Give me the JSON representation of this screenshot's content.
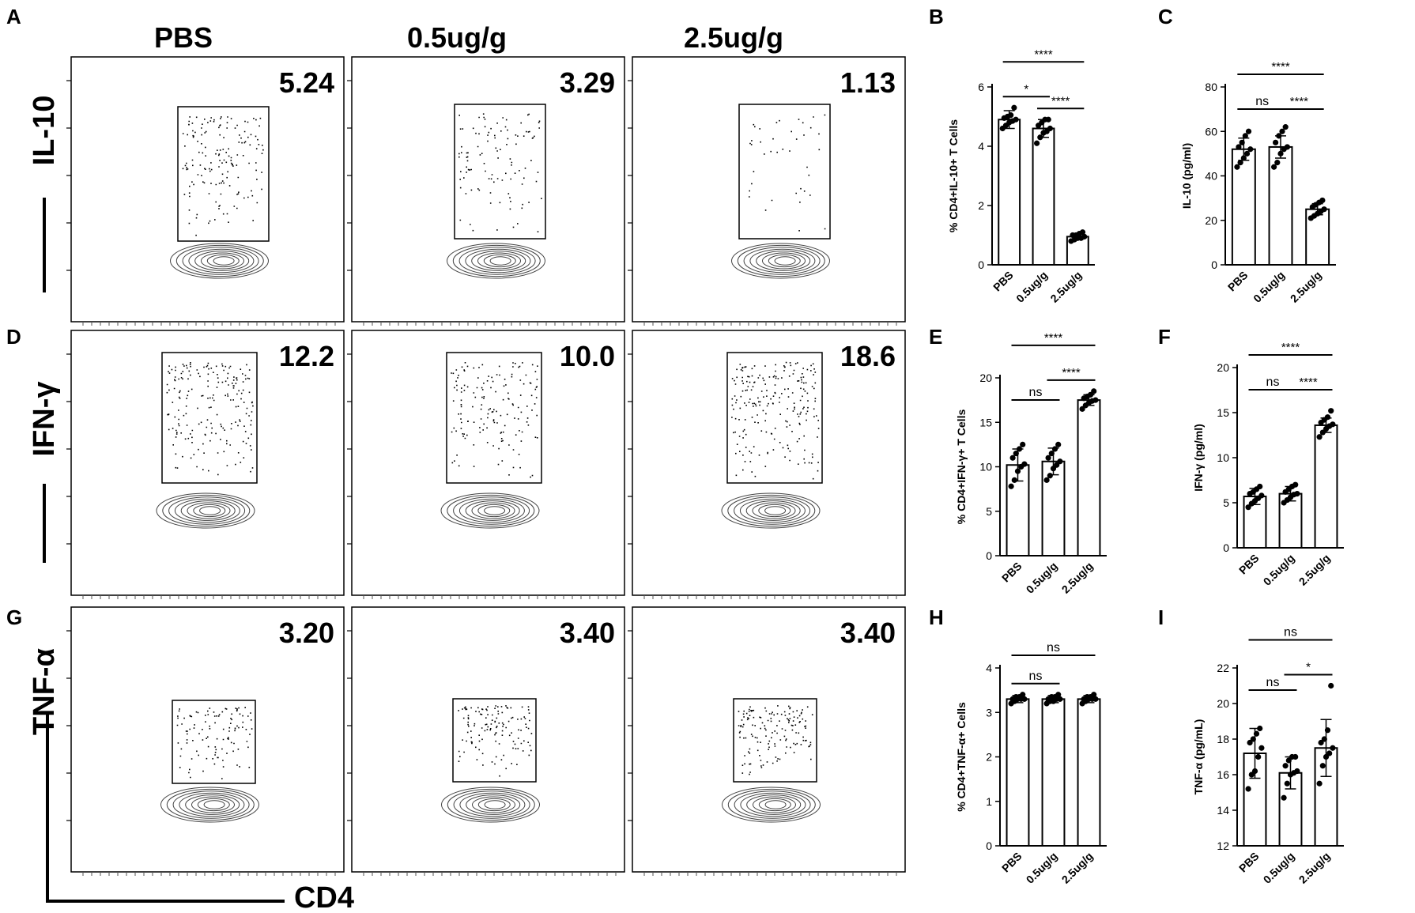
{
  "panel_letters": [
    "A",
    "B",
    "C",
    "D",
    "E",
    "F",
    "G",
    "H",
    "I"
  ],
  "flow": {
    "column_headers": [
      "PBS",
      "0.5ug/g",
      "2.5ug/g"
    ],
    "row_labels": [
      "IL-10",
      "IFN-γ",
      "TNF-α"
    ],
    "x_label": "CD4",
    "gate_percentages": [
      [
        "5.24",
        "3.29",
        "1.13"
      ],
      [
        "12.2",
        "10.0",
        "18.6"
      ],
      [
        "3.20",
        "3.40",
        "3.40"
      ]
    ]
  },
  "chart_data": [
    {
      "panel": "B",
      "type": "bar",
      "categories": [
        "PBS",
        "0.5ug/g",
        "2.5ug/g"
      ],
      "values": [
        4.9,
        4.6,
        0.95
      ],
      "errors": [
        0.3,
        0.3,
        0.1
      ],
      "points": [
        [
          4.6,
          4.7,
          4.8,
          4.85,
          4.9,
          4.95,
          5.0,
          5.05,
          5.3
        ],
        [
          4.1,
          4.3,
          4.45,
          4.5,
          4.6,
          4.7,
          4.8,
          4.9,
          4.9
        ],
        [
          0.8,
          0.85,
          0.9,
          0.9,
          0.95,
          1.0,
          1.0,
          1.05,
          1.1
        ]
      ],
      "ylabel": "% CD4+IL-10+ T Cells",
      "ylim": [
        0,
        6
      ],
      "yticks": [
        0,
        2,
        4,
        6
      ],
      "significance": [
        {
          "from": 0,
          "to": 2,
          "label": "****"
        },
        {
          "from": 0,
          "to": 1,
          "label": "*"
        },
        {
          "from": 1,
          "to": 2,
          "label": "****"
        }
      ]
    },
    {
      "panel": "C",
      "type": "bar",
      "categories": [
        "PBS",
        "0.5ug/g",
        "2.5ug/g"
      ],
      "values": [
        52,
        53,
        25
      ],
      "errors": [
        5,
        5,
        2.5
      ],
      "points": [
        [
          44,
          46,
          48,
          50,
          52,
          53,
          55,
          58,
          60
        ],
        [
          44,
          46,
          50,
          52,
          53,
          55,
          58,
          60,
          62
        ],
        [
          21,
          22,
          23,
          24,
          25,
          26,
          27,
          28,
          29
        ]
      ],
      "ylabel": "IL-10 (pg/ml)",
      "ylim": [
        0,
        80
      ],
      "yticks": [
        0,
        20,
        40,
        60,
        80
      ],
      "significance": [
        {
          "from": 0,
          "to": 2,
          "label": "****"
        },
        {
          "from": 1,
          "to": 2,
          "label": "****"
        },
        {
          "from": 0,
          "to": 1,
          "label": "ns"
        }
      ]
    },
    {
      "panel": "E",
      "type": "bar",
      "categories": [
        "PBS",
        "0.5ug/g",
        "2.5ug/g"
      ],
      "values": [
        10.2,
        10.6,
        17.5
      ],
      "errors": [
        1.8,
        1.5,
        0.6
      ],
      "points": [
        [
          7.8,
          8.5,
          9.5,
          10.0,
          10.3,
          11.0,
          11.5,
          12.0,
          12.5
        ],
        [
          8.5,
          9.0,
          9.8,
          10.2,
          10.6,
          11.0,
          11.5,
          12.0,
          12.5
        ],
        [
          16.5,
          16.9,
          17.2,
          17.4,
          17.5,
          17.7,
          17.9,
          18.1,
          18.5
        ]
      ],
      "ylabel": "% CD4+IFN-γ+ T Cells",
      "ylim": [
        0,
        20
      ],
      "yticks": [
        0,
        5,
        10,
        15,
        20
      ],
      "significance": [
        {
          "from": 0,
          "to": 2,
          "label": "****"
        },
        {
          "from": 1,
          "to": 2,
          "label": "****"
        },
        {
          "from": 0,
          "to": 1,
          "label": "ns"
        }
      ]
    },
    {
      "panel": "F",
      "type": "bar",
      "categories": [
        "PBS",
        "0.5ug/g",
        "2.5ug/g"
      ],
      "values": [
        5.7,
        6.0,
        13.6
      ],
      "errors": [
        0.9,
        0.8,
        0.8
      ],
      "points": [
        [
          4.5,
          4.9,
          5.2,
          5.5,
          5.8,
          6.0,
          6.2,
          6.5,
          6.8
        ],
        [
          5.0,
          5.3,
          5.6,
          5.9,
          6.0,
          6.2,
          6.5,
          6.8,
          7.0
        ],
        [
          12.3,
          12.8,
          13.2,
          13.5,
          13.7,
          13.9,
          14.2,
          14.5,
          15.2
        ]
      ],
      "ylabel": "IFN-γ (pg/ml)",
      "ylim": [
        0,
        20
      ],
      "yticks": [
        0,
        5,
        10,
        15,
        20
      ],
      "significance": [
        {
          "from": 0,
          "to": 2,
          "label": "****"
        },
        {
          "from": 1,
          "to": 2,
          "label": "****"
        },
        {
          "from": 0,
          "to": 1,
          "label": "ns"
        }
      ]
    },
    {
      "panel": "H",
      "type": "bar",
      "categories": [
        "PBS",
        "0.5ug/g",
        "2.5ug/g"
      ],
      "values": [
        3.3,
        3.3,
        3.3
      ],
      "errors": [
        0.08,
        0.08,
        0.08
      ],
      "points": [
        [
          3.2,
          3.25,
          3.3,
          3.3,
          3.3,
          3.3,
          3.35,
          3.35,
          3.4
        ],
        [
          3.2,
          3.25,
          3.25,
          3.3,
          3.3,
          3.3,
          3.35,
          3.35,
          3.4
        ],
        [
          3.2,
          3.25,
          3.3,
          3.3,
          3.3,
          3.3,
          3.35,
          3.35,
          3.4
        ]
      ],
      "ylabel": "% CD4+TNF-α+ Cells",
      "ylim": [
        0,
        4
      ],
      "yticks": [
        0,
        1,
        2,
        3,
        4
      ],
      "significance": [
        {
          "from": 0,
          "to": 2,
          "label": "ns"
        },
        {
          "from": 0,
          "to": 1,
          "label": "ns"
        }
      ]
    },
    {
      "panel": "I",
      "type": "bar",
      "categories": [
        "PBS",
        "0.5ug/g",
        "2.5ug/g"
      ],
      "values": [
        17.2,
        16.1,
        17.5
      ],
      "errors": [
        1.4,
        0.9,
        1.6
      ],
      "points": [
        [
          15.2,
          16.0,
          16.2,
          17.0,
          17.5,
          17.8,
          18.0,
          18.3,
          18.6
        ],
        [
          14.7,
          15.5,
          16.0,
          16.1,
          16.2,
          16.5,
          16.8,
          17.0,
          17.0
        ],
        [
          15.5,
          16.5,
          17.0,
          17.2,
          17.5,
          17.8,
          18.0,
          18.5,
          21.0
        ]
      ],
      "ylabel": "TNF-α (pg/mL)",
      "ylim": [
        12,
        22
      ],
      "yticks": [
        12,
        14,
        16,
        18,
        20,
        22
      ],
      "significance": [
        {
          "from": 0,
          "to": 2,
          "label": "ns"
        },
        {
          "from": 1,
          "to": 2,
          "label": "*"
        },
        {
          "from": 0,
          "to": 1,
          "label": "ns"
        }
      ]
    }
  ]
}
